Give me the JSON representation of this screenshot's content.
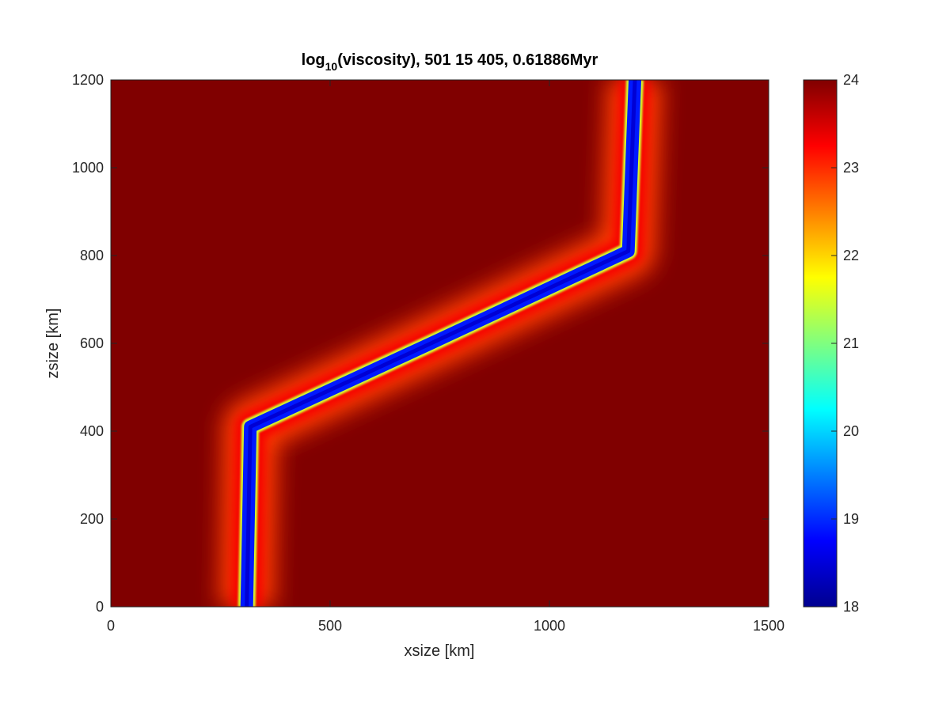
{
  "chart_data": {
    "type": "heatmap",
    "title": {
      "prefix": "log",
      "subscript": "10",
      "suffix": "(viscosity), 501 15 405, 0.61886Myr"
    },
    "xlabel": "xsize [km]",
    "ylabel": "zsize [km]",
    "xlim": [
      0,
      1500
    ],
    "ylim": [
      0,
      1200
    ],
    "xticks": [
      0,
      500,
      1000,
      1500
    ],
    "xtick_labels": [
      "0",
      "500",
      "1000",
      "1500"
    ],
    "yticks": [
      0,
      200,
      400,
      600,
      800,
      1000,
      1200
    ],
    "ytick_labels": [
      "0",
      "200",
      "400",
      "600",
      "800",
      "1000",
      "1200"
    ],
    "colormap": "jet",
    "colorbar": {
      "clim": [
        18,
        24
      ],
      "ticks": [
        18,
        19,
        20,
        21,
        22,
        23,
        24
      ],
      "tick_labels": [
        "18",
        "19",
        "20",
        "21",
        "22",
        "23",
        "24"
      ]
    },
    "background_value": 24,
    "weak_zone": {
      "description_points_km": [
        [
          310,
          0
        ],
        [
          318,
          410
        ],
        [
          730,
          600
        ],
        [
          1180,
          810
        ],
        [
          1195,
          1200
        ]
      ],
      "core_value": 18.9,
      "halo_value": 23.2
    }
  }
}
